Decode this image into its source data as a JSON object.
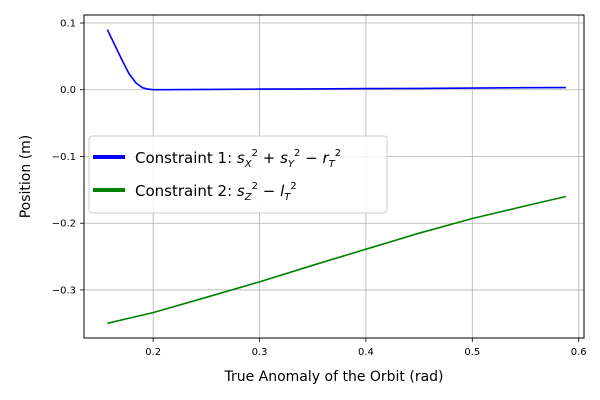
{
  "chart_data": {
    "type": "line",
    "title": "",
    "xlabel": "True Anomaly of the Orbit (rad)",
    "ylabel": "Position (m)",
    "xlim": [
      0.135,
      0.605
    ],
    "ylim": [
      -0.372,
      0.112
    ],
    "xticks": [
      0.2,
      0.3,
      0.4,
      0.5,
      0.6
    ],
    "xtick_labels": [
      "0.2",
      "0.3",
      "0.4",
      "0.5",
      "0.6"
    ],
    "yticks": [
      0.1,
      0.0,
      -0.1,
      -0.2,
      -0.3
    ],
    "ytick_labels": [
      "0.1",
      "0.0",
      "−0.1",
      "−0.2",
      "−0.3"
    ],
    "grid": true,
    "legend_position": "center-left",
    "series": [
      {
        "name_prefix": "Constraint 1: ",
        "name_math": "s_X^2 + s_Y^2 − r_T^2",
        "color": "#0000ff",
        "x": [
          0.157,
          0.163,
          0.17,
          0.177,
          0.184,
          0.19,
          0.195,
          0.2,
          0.21,
          0.25,
          0.3,
          0.35,
          0.4,
          0.45,
          0.5,
          0.55,
          0.588
        ],
        "y": [
          0.09,
          0.07,
          0.047,
          0.025,
          0.01,
          0.003,
          0.001,
          0.0,
          0.0,
          0.0005,
          0.001,
          0.0013,
          0.0017,
          0.002,
          0.0025,
          0.003,
          0.0032
        ]
      },
      {
        "name_prefix": "Constraint 2: ",
        "name_math": "s_Z^2 − l_T^2",
        "color": "#008000",
        "x": [
          0.157,
          0.2,
          0.25,
          0.3,
          0.35,
          0.4,
          0.45,
          0.5,
          0.55,
          0.588
        ],
        "y": [
          -0.35,
          -0.334,
          -0.311,
          -0.288,
          -0.263,
          -0.239,
          -0.215,
          -0.193,
          -0.174,
          -0.16
        ]
      }
    ]
  }
}
